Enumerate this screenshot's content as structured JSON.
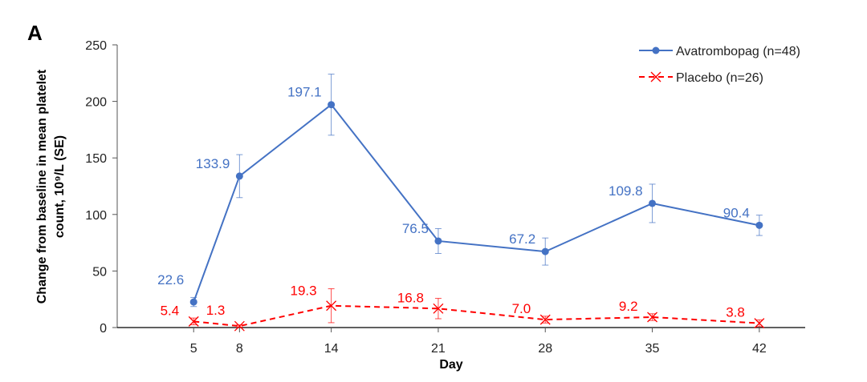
{
  "chart_data": {
    "type": "line",
    "panel_label": "A",
    "xlabel": "Day",
    "ylabel_line1": "Change from baseline in mean platelet",
    "ylabel_line2": "count, 10⁹/L (SE)",
    "x": [
      5,
      8,
      14,
      21,
      28,
      35,
      42
    ],
    "x_tick_labels": [
      "5",
      "8",
      "14",
      "21",
      "28",
      "35",
      "42"
    ],
    "xlim": [
      0,
      45
    ],
    "ylim": [
      0,
      250
    ],
    "y_ticks": [
      0,
      50,
      100,
      150,
      200,
      250
    ],
    "grid": false,
    "legend_position": "top-right",
    "series": [
      {
        "name": "Avatrombopag (n=48)",
        "color": "#4472C4",
        "marker": "circle",
        "line": "solid",
        "values": [
          22.6,
          133.9,
          197.1,
          76.5,
          67.2,
          109.8,
          90.4
        ],
        "errors": [
          4,
          19,
          27,
          11,
          12,
          17,
          9
        ],
        "labels": [
          "22.6",
          "133.9",
          "197.1",
          "76.5",
          "67.2",
          "109.8",
          "90.4"
        ]
      },
      {
        "name": "Placebo (n=26)",
        "color": "#FF0000",
        "marker": "x",
        "line": "dashed",
        "values": [
          5.4,
          1.3,
          19.3,
          16.8,
          7.0,
          9.2,
          3.8
        ],
        "errors": [
          3,
          1,
          15,
          9,
          3,
          3,
          3
        ],
        "labels": [
          "5.4",
          "1.3",
          "19.3",
          "16.8",
          "7.0",
          "9.2",
          "3.8"
        ]
      }
    ]
  }
}
